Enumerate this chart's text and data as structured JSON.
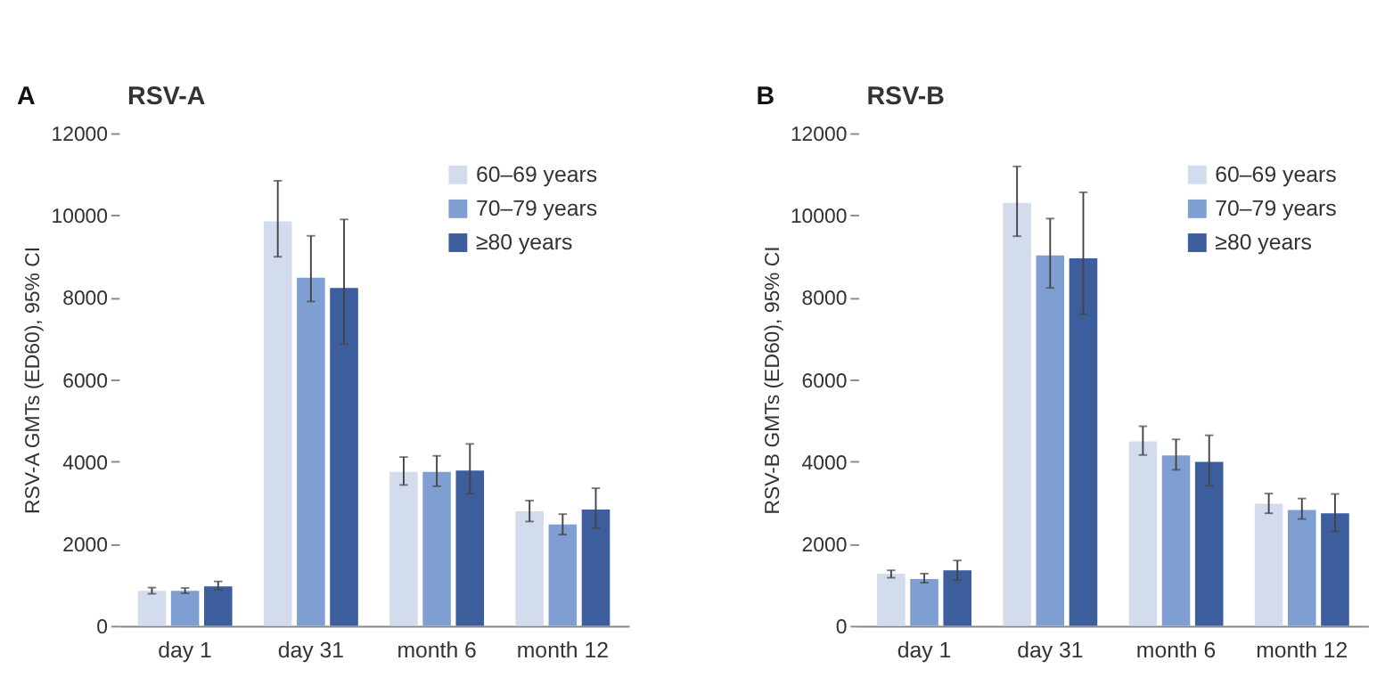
{
  "chart_data": [
    {
      "type": "bar",
      "title": "RSV-A",
      "annotations": [
        "A"
      ],
      "ylabel": "RSV-A GMTs (ED60), 95% CI",
      "categories": [
        "day 1",
        "day 31",
        "month 6",
        "month 12"
      ],
      "ylim": [
        0,
        12000
      ],
      "yticks": [
        0,
        2000,
        4000,
        6000,
        8000,
        10000,
        12000
      ],
      "legend": "top right",
      "series": [
        {
          "name": "60–69 years",
          "color": "#d3dced",
          "values": [
            850,
            9850,
            3750,
            2790
          ],
          "errors": [
            [
              780,
              930
            ],
            [
              8990,
              10840
            ],
            [
              3430,
              4110
            ],
            [
              2540,
              3050
            ]
          ]
        },
        {
          "name": "70–79 years",
          "color": "#7f9fd2",
          "values": [
            850,
            8480,
            3750,
            2470
          ],
          "errors": [
            [
              790,
              920
            ],
            [
              7900,
              9500
            ],
            [
              3400,
              4140
            ],
            [
              2220,
              2720
            ]
          ]
        },
        {
          "name": "≥80 years",
          "color": "#3d5e9c",
          "values": [
            960,
            8230,
            3780,
            2830
          ],
          "errors": [
            [
              880,
              1080
            ],
            [
              6860,
              9900
            ],
            [
              3220,
              4430
            ],
            [
              2380,
              3350
            ]
          ]
        }
      ]
    },
    {
      "type": "bar",
      "title": "RSV-B",
      "annotations": [
        "B"
      ],
      "ylabel": "RSV-B GMTs (ED60), 95% CI",
      "categories": [
        "day 1",
        "day 31",
        "month 6",
        "month 12"
      ],
      "ylim": [
        0,
        12000
      ],
      "yticks": [
        0,
        2000,
        4000,
        6000,
        8000,
        10000,
        12000
      ],
      "legend": "top right",
      "series": [
        {
          "name": "60–69 years",
          "color": "#d3dced",
          "values": [
            1270,
            10300,
            4490,
            2970
          ],
          "errors": [
            [
              1170,
              1350
            ],
            [
              9490,
              11190
            ],
            [
              4160,
              4860
            ],
            [
              2740,
              3220
            ]
          ]
        },
        {
          "name": "70–79 years",
          "color": "#7f9fd2",
          "values": [
            1140,
            9020,
            4150,
            2820
          ],
          "errors": [
            [
              1050,
              1270
            ],
            [
              8230,
              9920
            ],
            [
              3800,
              4540
            ],
            [
              2600,
              3100
            ]
          ]
        },
        {
          "name": "≥80 years",
          "color": "#3d5e9c",
          "values": [
            1350,
            8950,
            3990,
            2740
          ],
          "errors": [
            [
              1110,
              1590
            ],
            [
              7590,
              10560
            ],
            [
              3410,
              4640
            ],
            [
              2300,
              3210
            ]
          ]
        }
      ]
    }
  ]
}
